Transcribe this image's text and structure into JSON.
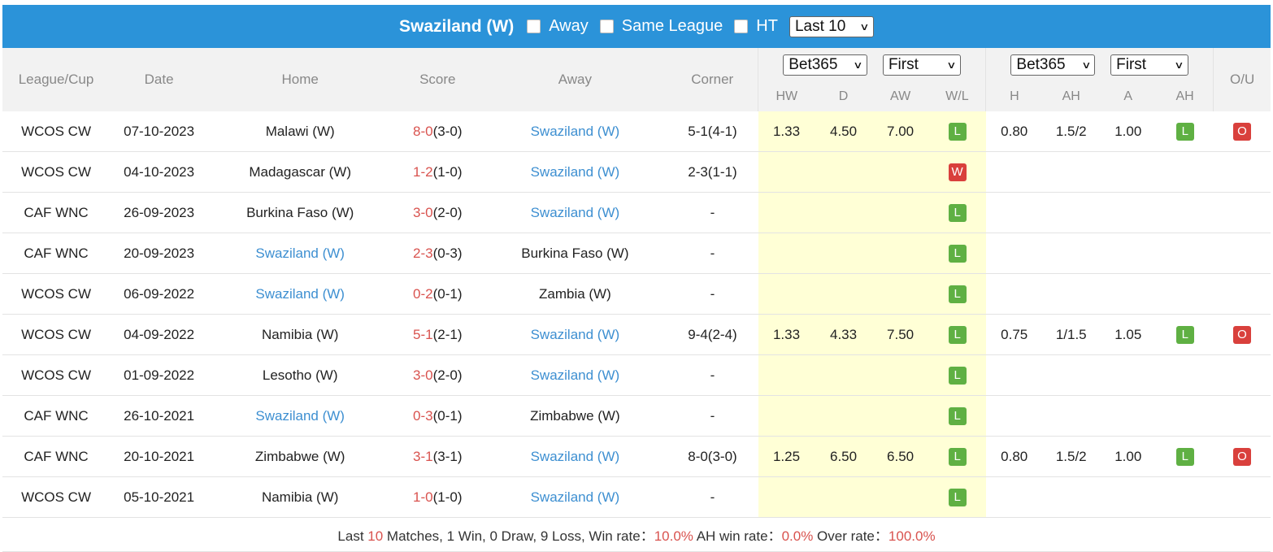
{
  "header": {
    "team": "Swaziland (W)",
    "away_label": "Away",
    "same_league_label": "Same League",
    "ht_label": "HT",
    "range_select": "Last 10"
  },
  "columns": {
    "league": "League/Cup",
    "date": "Date",
    "home": "Home",
    "score": "Score",
    "away": "Away",
    "corner": "Corner",
    "odds1_company": "Bet365",
    "odds1_type": "First",
    "hw": "HW",
    "d": "D",
    "aw": "AW",
    "wl": "W/L",
    "odds2_company": "Bet365",
    "odds2_type": "First",
    "h": "H",
    "ah": "AH",
    "a": "A",
    "ah2": "AH",
    "ou": "O/U"
  },
  "rows": [
    {
      "league": "WCOS CW",
      "date": "07-10-2023",
      "home": "Malawi (W)",
      "ft": "8-0",
      "ht": "(3-0)",
      "away": "Swaziland (W)",
      "corner": "5-1(4-1)",
      "hw": "1.33",
      "d": "4.50",
      "aw": "7.00",
      "wl": "L",
      "h": "0.80",
      "ah": "1.5/2",
      "a": "1.00",
      "ahr": "L",
      "ou": "O"
    },
    {
      "league": "WCOS CW",
      "date": "04-10-2023",
      "home": "Madagascar (W)",
      "ft": "1-2",
      "ht": "(1-0)",
      "away": "Swaziland (W)",
      "corner": "2-3(1-1)",
      "hw": "",
      "d": "",
      "aw": "",
      "wl": "W",
      "h": "",
      "ah": "",
      "a": "",
      "ahr": "",
      "ou": ""
    },
    {
      "league": "CAF WNC",
      "date": "26-09-2023",
      "home": "Burkina Faso (W)",
      "ft": "3-0",
      "ht": "(2-0)",
      "away": "Swaziland (W)",
      "corner": "-",
      "hw": "",
      "d": "",
      "aw": "",
      "wl": "L",
      "h": "",
      "ah": "",
      "a": "",
      "ahr": "",
      "ou": ""
    },
    {
      "league": "CAF WNC",
      "date": "20-09-2023",
      "home": "Swaziland (W)",
      "ft": "2-3",
      "ht": "(0-3)",
      "away": "Burkina Faso (W)",
      "corner": "-",
      "hw": "",
      "d": "",
      "aw": "",
      "wl": "L",
      "h": "",
      "ah": "",
      "a": "",
      "ahr": "",
      "ou": ""
    },
    {
      "league": "WCOS CW",
      "date": "06-09-2022",
      "home": "Swaziland (W)",
      "ft": "0-2",
      "ht": "(0-1)",
      "away": "Zambia (W)",
      "corner": "-",
      "hw": "",
      "d": "",
      "aw": "",
      "wl": "L",
      "h": "",
      "ah": "",
      "a": "",
      "ahr": "",
      "ou": ""
    },
    {
      "league": "WCOS CW",
      "date": "04-09-2022",
      "home": "Namibia (W)",
      "ft": "5-1",
      "ht": "(2-1)",
      "away": "Swaziland (W)",
      "corner": "9-4(2-4)",
      "hw": "1.33",
      "d": "4.33",
      "aw": "7.50",
      "wl": "L",
      "h": "0.75",
      "ah": "1/1.5",
      "a": "1.05",
      "ahr": "L",
      "ou": "O"
    },
    {
      "league": "WCOS CW",
      "date": "01-09-2022",
      "home": "Lesotho (W)",
      "ft": "3-0",
      "ht": "(2-0)",
      "away": "Swaziland (W)",
      "corner": "-",
      "hw": "",
      "d": "",
      "aw": "",
      "wl": "L",
      "h": "",
      "ah": "",
      "a": "",
      "ahr": "",
      "ou": ""
    },
    {
      "league": "CAF WNC",
      "date": "26-10-2021",
      "home": "Swaziland (W)",
      "ft": "0-3",
      "ht": "(0-1)",
      "away": "Zimbabwe (W)",
      "corner": "-",
      "hw": "",
      "d": "",
      "aw": "",
      "wl": "L",
      "h": "",
      "ah": "",
      "a": "",
      "ahr": "",
      "ou": ""
    },
    {
      "league": "CAF WNC",
      "date": "20-10-2021",
      "home": "Zimbabwe (W)",
      "ft": "3-1",
      "ht": "(3-1)",
      "away": "Swaziland (W)",
      "corner": "8-0(3-0)",
      "hw": "1.25",
      "d": "6.50",
      "aw": "6.50",
      "wl": "L",
      "h": "0.80",
      "ah": "1.5/2",
      "a": "1.00",
      "ahr": "L",
      "ou": "O"
    },
    {
      "league": "WCOS CW",
      "date": "05-10-2021",
      "home": "Namibia (W)",
      "ft": "1-0",
      "ht": "(1-0)",
      "away": "Swaziland (W)",
      "corner": "-",
      "hw": "",
      "d": "",
      "aw": "",
      "wl": "L",
      "h": "",
      "ah": "",
      "a": "",
      "ahr": "",
      "ou": ""
    }
  ],
  "summary": {
    "p1": "Last ",
    "count": "10",
    "p2": " Matches, 1 Win, 0 Draw, 9 Loss, Win rate：",
    "win_rate": "10.0%",
    "p3": " AH win rate：",
    "ah_rate": "0.0%",
    "p4": " Over rate：",
    "over_rate": "100.0%"
  },
  "colors": {
    "header_bg": "#2b93d9",
    "team_link": "#3d8fd1",
    "score": "#d9534f",
    "odds_bg": "#ffffd6",
    "loss_badge": "#5fb043",
    "win_badge": "#d9403c"
  }
}
